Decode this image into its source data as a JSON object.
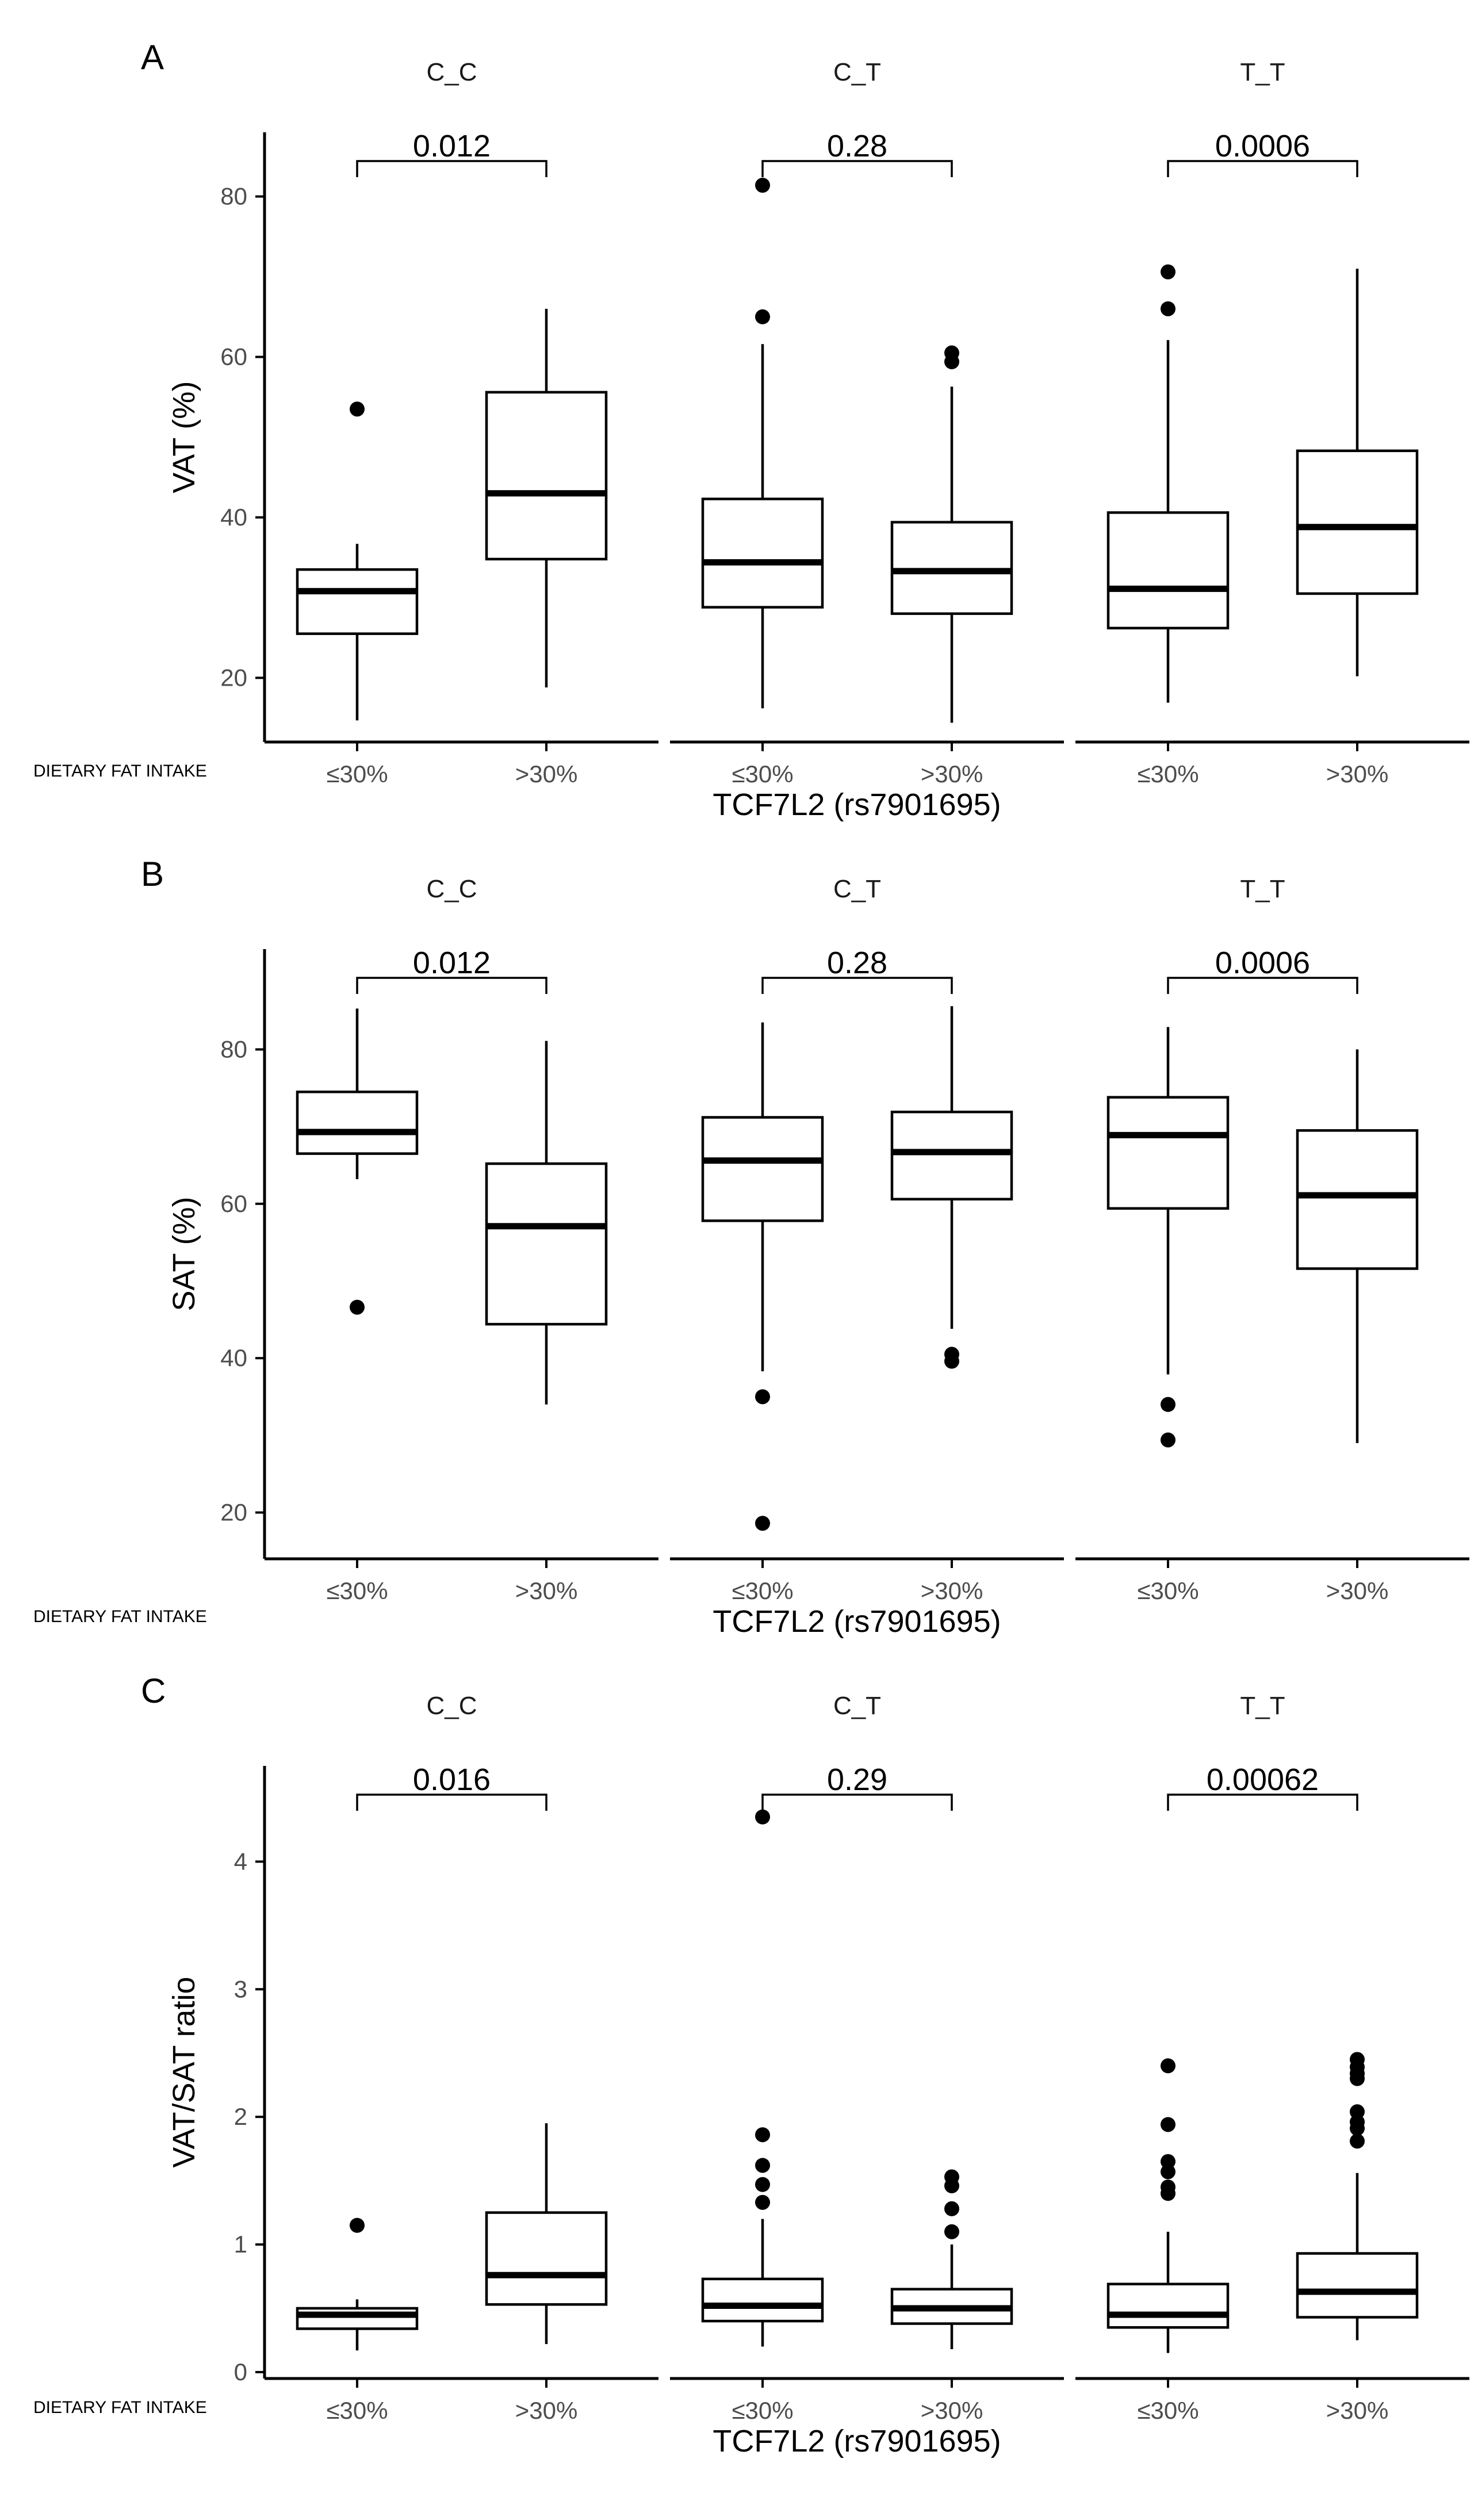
{
  "chart_data": [
    {
      "type": "box",
      "panel": "A",
      "ylabel": "VAT (%)",
      "xlabel": "TCF7L2 (rs7901695)",
      "x_prefix": "DIETARY FAT INTAKE",
      "ylim": [
        12,
        88
      ],
      "yticks": [
        20,
        40,
        60,
        80
      ],
      "categories": [
        "≤30%",
        ">30%"
      ],
      "facets": [
        {
          "name": "C_C",
          "p": "0.012",
          "boxes": [
            {
              "category": "≤30%",
              "min": 14.7,
              "q1": 25.5,
              "median": 30.8,
              "q3": 33.5,
              "max": 36.7,
              "outliers": [
                53.5
              ]
            },
            {
              "category": ">30%",
              "min": 18.8,
              "q1": 34.8,
              "median": 43.0,
              "q3": 55.6,
              "max": 66.0,
              "outliers": []
            }
          ]
        },
        {
          "name": "C_T",
          "p": "0.28",
          "boxes": [
            {
              "category": "≤30%",
              "min": 16.2,
              "q1": 28.8,
              "median": 34.4,
              "q3": 42.3,
              "max": 61.6,
              "outliers": [
                65.0,
                81.4
              ]
            },
            {
              "category": ">30%",
              "min": 14.4,
              "q1": 28.0,
              "median": 33.3,
              "q3": 39.4,
              "max": 56.3,
              "outliers": [
                59.4,
                60.5
              ]
            }
          ]
        },
        {
          "name": "T_T",
          "p": "0.0006",
          "boxes": [
            {
              "category": "≤30%",
              "min": 16.9,
              "q1": 26.2,
              "median": 31.1,
              "q3": 40.6,
              "max": 62.1,
              "outliers": [
                66.0,
                70.6
              ]
            },
            {
              "category": ">30%",
              "min": 20.2,
              "q1": 30.5,
              "median": 38.8,
              "q3": 48.3,
              "max": 71.0,
              "outliers": []
            }
          ]
        }
      ]
    },
    {
      "type": "box",
      "panel": "B",
      "ylabel": "SAT (%)",
      "xlabel": "TCF7L2 (rs7901695)",
      "x_prefix": "DIETARY FAT INTAKE",
      "ylim": [
        14,
        93
      ],
      "yticks": [
        20,
        40,
        60,
        80
      ],
      "categories": [
        "≤30%",
        ">30%"
      ],
      "facets": [
        {
          "name": "C_C",
          "p": "0.012",
          "boxes": [
            {
              "category": "≤30%",
              "min": 63.2,
              "q1": 66.5,
              "median": 69.3,
              "q3": 74.5,
              "max": 85.3,
              "outliers": [
                46.6
              ]
            },
            {
              "category": ">30%",
              "min": 34.0,
              "q1": 44.4,
              "median": 57.1,
              "q3": 65.2,
              "max": 81.1,
              "outliers": []
            }
          ]
        },
        {
          "name": "C_T",
          "p": "0.28",
          "boxes": [
            {
              "category": "≤30%",
              "min": 38.3,
              "q1": 57.8,
              "median": 65.6,
              "q3": 71.2,
              "max": 83.5,
              "outliers": [
                35.0,
                18.6
              ]
            },
            {
              "category": ">30%",
              "min": 43.8,
              "q1": 60.6,
              "median": 66.7,
              "q3": 71.9,
              "max": 85.6,
              "outliers": [
                40.5,
                39.6
              ]
            }
          ]
        },
        {
          "name": "T_T",
          "p": "0.0006",
          "boxes": [
            {
              "category": "≤30%",
              "min": 37.9,
              "q1": 59.4,
              "median": 68.9,
              "q3": 73.8,
              "max": 82.9,
              "outliers": [
                34.0,
                29.4
              ]
            },
            {
              "category": ">30%",
              "min": 29.0,
              "q1": 51.6,
              "median": 61.1,
              "q3": 69.5,
              "max": 80.0,
              "outliers": []
            }
          ]
        }
      ]
    },
    {
      "type": "box",
      "panel": "C",
      "ylabel": "VAT/SAT ratio",
      "xlabel": "TCF7L2 (rs7901695)",
      "x_prefix": "DIETARY FAT INTAKE",
      "ylim": [
        -0.05,
        4.75
      ],
      "yticks": [
        0,
        1,
        2,
        3,
        4
      ],
      "categories": [
        "≤30%",
        ">30%"
      ],
      "facets": [
        {
          "name": "C_C",
          "p": "0.016",
          "boxes": [
            {
              "category": "≤30%",
              "min": 0.17,
              "q1": 0.34,
              "median": 0.45,
              "q3": 0.5,
              "max": 0.57,
              "outliers": [
                1.15
              ]
            },
            {
              "category": ">30%",
              "min": 0.22,
              "q1": 0.53,
              "median": 0.76,
              "q3": 1.25,
              "max": 1.95,
              "outliers": []
            }
          ]
        },
        {
          "name": "C_T",
          "p": "0.29",
          "boxes": [
            {
              "category": "≤30%",
              "min": 0.2,
              "q1": 0.4,
              "median": 0.52,
              "q3": 0.73,
              "max": 1.2,
              "outliers": [
                1.33,
                1.47,
                1.62,
                1.86,
                4.35
              ]
            },
            {
              "category": ">30%",
              "min": 0.18,
              "q1": 0.38,
              "median": 0.5,
              "q3": 0.65,
              "max": 1.0,
              "outliers": [
                1.1,
                1.28,
                1.46,
                1.53
              ]
            }
          ]
        },
        {
          "name": "T_T",
          "p": "0.00062",
          "boxes": [
            {
              "category": "≤30%",
              "min": 0.15,
              "q1": 0.35,
              "median": 0.45,
              "q3": 0.69,
              "max": 1.1,
              "outliers": [
                1.4,
                1.45,
                1.57,
                1.65,
                1.94,
                2.4
              ]
            },
            {
              "category": ">30%",
              "min": 0.25,
              "q1": 0.43,
              "median": 0.63,
              "q3": 0.93,
              "max": 1.56,
              "outliers": [
                1.81,
                1.91,
                1.96,
                2.04,
                2.3,
                2.34,
                2.39,
                2.45
              ]
            }
          ]
        }
      ]
    }
  ]
}
